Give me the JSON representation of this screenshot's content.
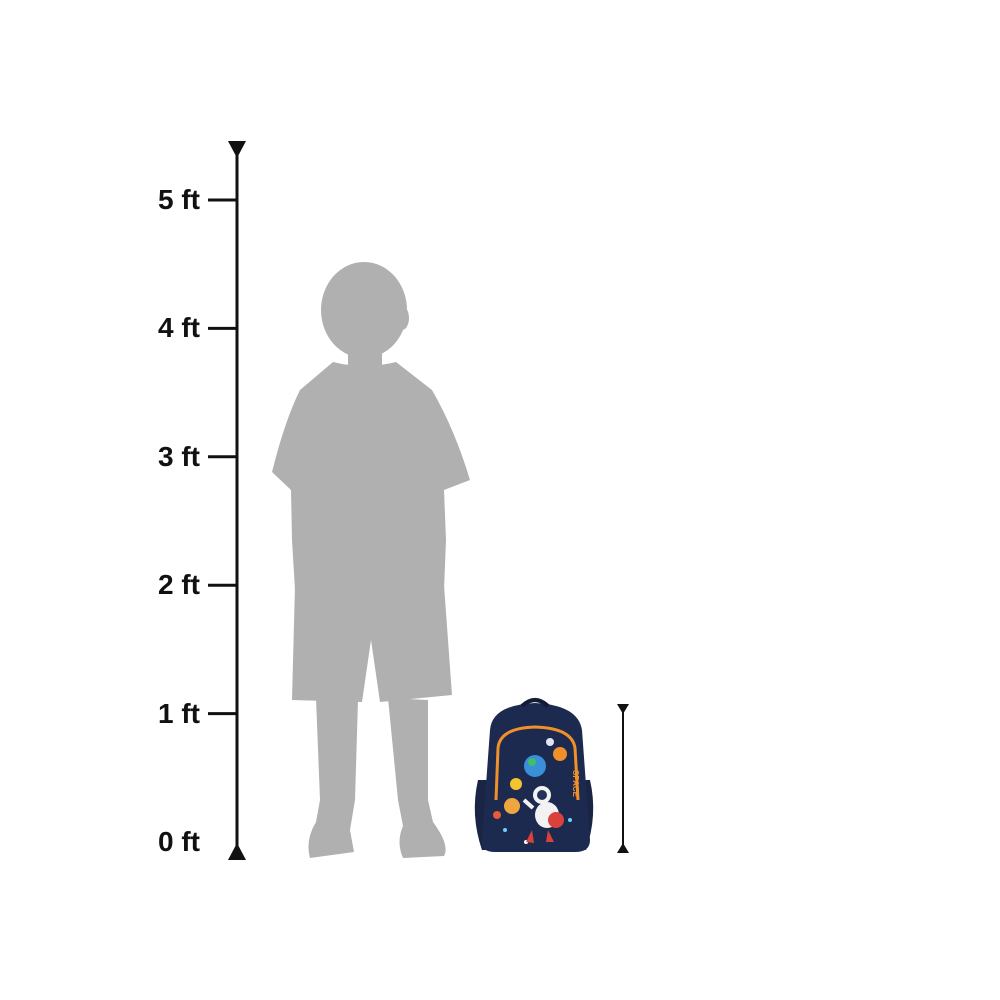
{
  "scale": {
    "unit": "ft",
    "ticks": [
      {
        "value": 5,
        "label": "5 ft"
      },
      {
        "value": 4,
        "label": "4 ft"
      },
      {
        "value": 3,
        "label": "3 ft"
      },
      {
        "value": 2,
        "label": "2 ft"
      },
      {
        "value": 1,
        "label": "1 ft"
      },
      {
        "value": 0,
        "label": "0 ft"
      }
    ]
  },
  "figures": {
    "child": {
      "color": "#b0b0b0"
    },
    "backpack": {
      "body_color": "#1d2a4f",
      "trim_color": "#f0902a",
      "patch_text": "SPACE"
    }
  }
}
